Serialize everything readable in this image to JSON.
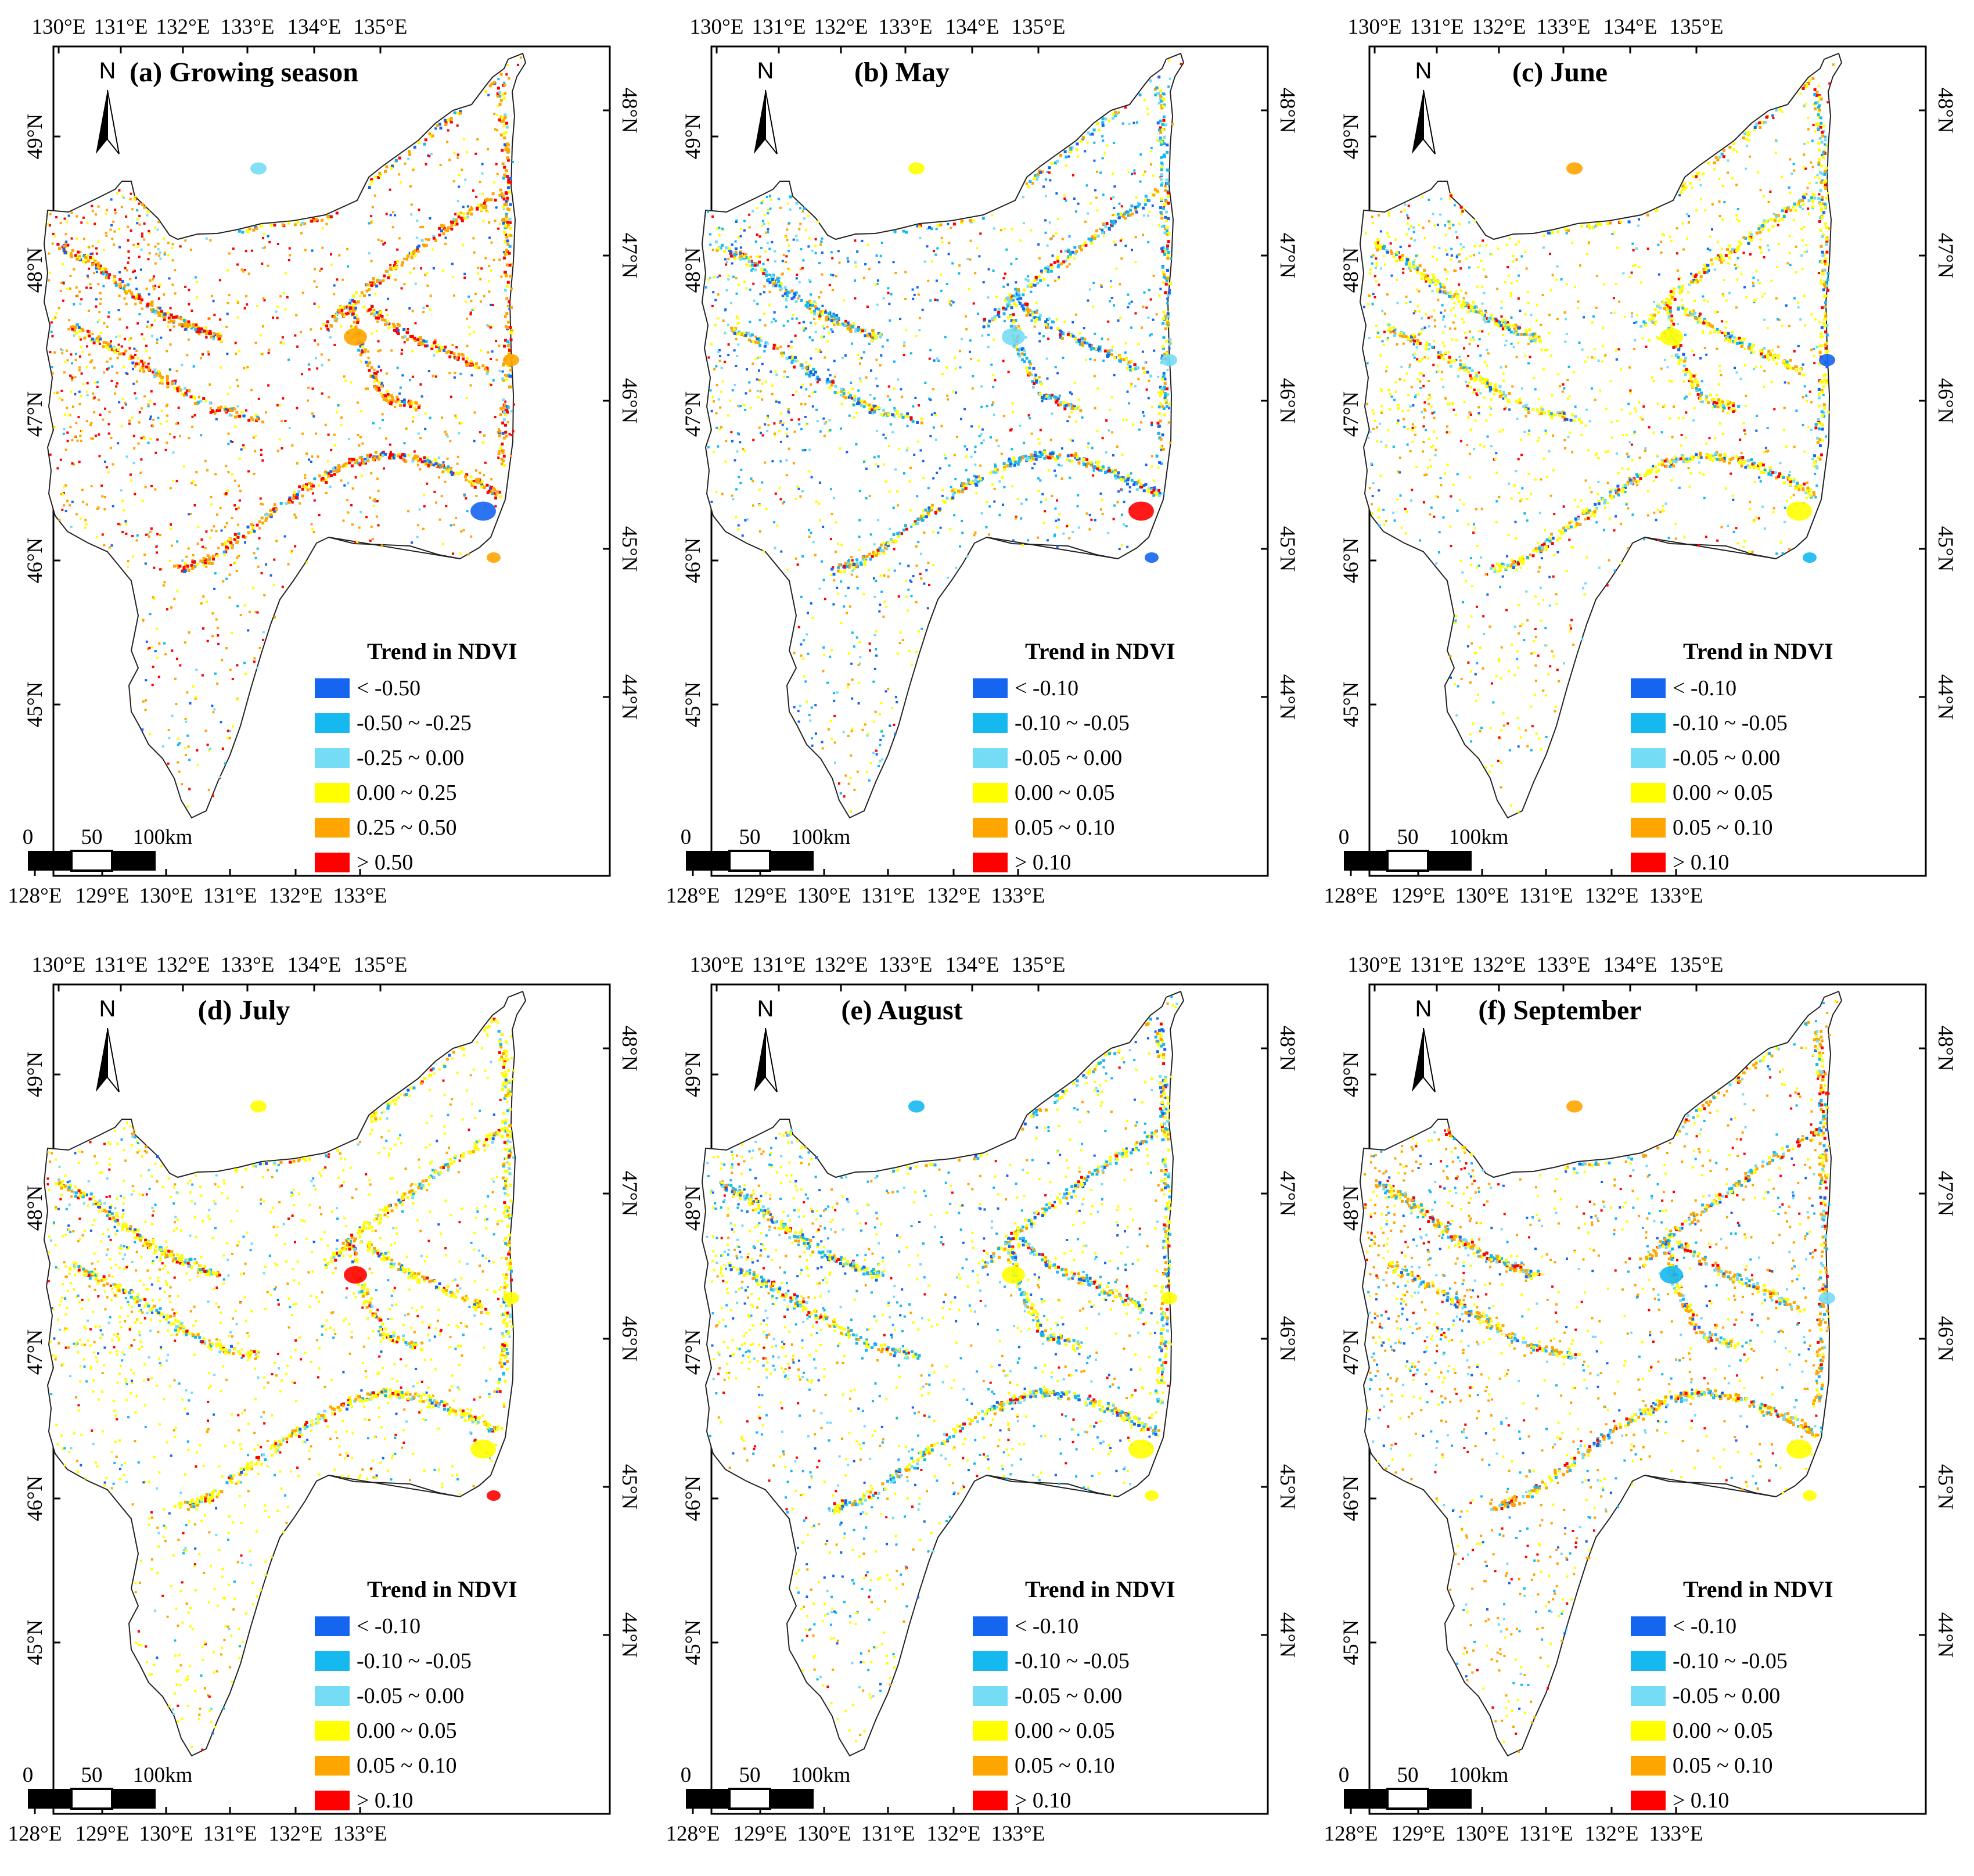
{
  "figure": {
    "top_lon_ticks": [
      "130°E",
      "131°E",
      "132°E",
      "133°E",
      "134°E",
      "135°E"
    ],
    "bottom_lon_ticks": [
      "128°E",
      "129°E",
      "130°E",
      "131°E",
      "132°E",
      "133°E"
    ],
    "left_lat_ticks": [
      "49°N",
      "48°N",
      "47°N",
      "46°N",
      "45°N"
    ],
    "right_lat_ticks": [
      "48°N",
      "47°N",
      "46°N",
      "45°N",
      "44°N"
    ],
    "north_label": "N",
    "scale_labels": [
      "0",
      "50",
      "100km"
    ],
    "legend_colors": [
      "#1565f0",
      "#15b8ef",
      "#74dcf5",
      "#ffff00",
      "#ffa500",
      "#ff0000"
    ],
    "region_outline_color": "#222222"
  },
  "panels": [
    {
      "title": "(a) Growing season",
      "legend": {
        "title": "Trend in NDVI",
        "items": [
          "< -0.50",
          "-0.50 ~ -0.25",
          "-0.25 ~ 0.00",
          "0.00 ~ 0.25",
          "0.25 ~ 0.50",
          "> 0.50"
        ]
      },
      "color_mix": [
        0.08,
        0.05,
        0.06,
        0.18,
        0.4,
        0.23
      ]
    },
    {
      "title": "(b) May",
      "legend": {
        "title": "Trend in NDVI",
        "items": [
          "< -0.10",
          "-0.10 ~ -0.05",
          "-0.05 ~ 0.00",
          "0.00 ~ 0.05",
          "0.05 ~ 0.10",
          "> 0.10"
        ]
      },
      "color_mix": [
        0.18,
        0.24,
        0.12,
        0.22,
        0.16,
        0.08
      ]
    },
    {
      "title": "(c) June",
      "legend": {
        "title": "Trend in NDVI",
        "items": [
          "< -0.10",
          "-0.10 ~ -0.05",
          "-0.05 ~ 0.00",
          "0.00 ~ 0.05",
          "0.05 ~ 0.10",
          "> 0.10"
        ]
      },
      "color_mix": [
        0.05,
        0.12,
        0.1,
        0.45,
        0.18,
        0.1
      ]
    },
    {
      "title": "(d) July",
      "legend": {
        "title": "Trend in NDVI",
        "items": [
          "< -0.10",
          "-0.10 ~ -0.05",
          "-0.05 ~ 0.00",
          "0.00 ~ 0.05",
          "0.05 ~ 0.10",
          "> 0.10"
        ]
      },
      "color_mix": [
        0.04,
        0.1,
        0.08,
        0.55,
        0.16,
        0.07
      ]
    },
    {
      "title": "(e) August",
      "legend": {
        "title": "Trend in NDVI",
        "items": [
          "< -0.10",
          "-0.10 ~ -0.05",
          "-0.05 ~ 0.00",
          "0.00 ~ 0.05",
          "0.05 ~ 0.10",
          "> 0.10"
        ]
      },
      "color_mix": [
        0.1,
        0.22,
        0.12,
        0.38,
        0.12,
        0.06
      ]
    },
    {
      "title": "(f) September",
      "legend": {
        "title": "Trend in NDVI",
        "items": [
          "< -0.10",
          "-0.10 ~ -0.05",
          "-0.05 ~ 0.00",
          "0.00 ~ 0.05",
          "0.05 ~ 0.10",
          "> 0.10"
        ]
      },
      "color_mix": [
        0.05,
        0.14,
        0.1,
        0.24,
        0.37,
        0.1
      ]
    }
  ]
}
